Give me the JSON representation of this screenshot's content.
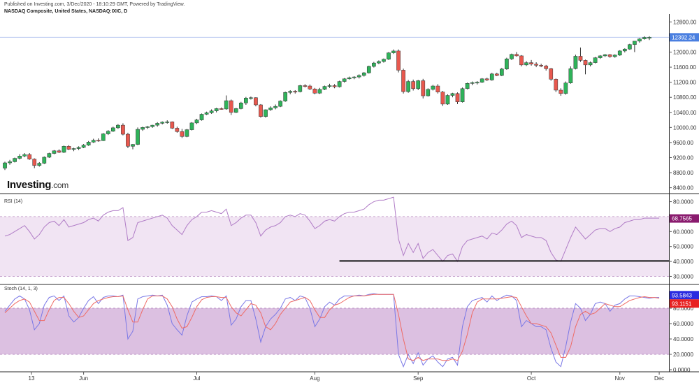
{
  "header": {
    "published": "Published on Investing.com, 3/Dec/2020 - 18:10:29 GMT, Powered by TradingView.",
    "symbol": "NASDAQ Composite, United States, NASDAQ:IXIC, D"
  },
  "logo": {
    "brand": "Investing",
    "suffix": ".com"
  },
  "colors": {
    "up": "#2fb35a",
    "down": "#e8584e",
    "rsi": "#b07cc6",
    "rsi_band": "#f1e4f3",
    "stoch_k": "#7a78e6",
    "stoch_d": "#ef6a64",
    "stoch_band": "#dcc0e1",
    "last_line": "#b8c8f0",
    "last_badge": "#4a7fe0",
    "rsi_badge": "#8a1b6e",
    "k_badge": "#2a2ae0",
    "d_badge": "#e82020"
  },
  "chart_data": [
    {
      "type": "candlestick",
      "title": "NASDAQ Composite, United States, NASDAQ:IXIC, D",
      "ylim": [
        8300,
        12900
      ],
      "y_ticks": [
        "12800.00",
        "12400.00",
        "12000.00",
        "11600.00",
        "11200.00",
        "10800.00",
        "10400.00",
        "10000.00",
        "9600.00",
        "9200.00",
        "8800.00",
        "8400.00"
      ],
      "x_ticks": [
        "13",
        "Jun",
        "Jul",
        "Aug",
        "Sep",
        "Oct",
        "Nov",
        "Dec"
      ],
      "last_value": "12392.24",
      "grid": false,
      "candles": [
        [
          8920,
          9090,
          8870,
          9060
        ],
        [
          9060,
          9140,
          9010,
          9090
        ],
        [
          9090,
          9200,
          9070,
          9180
        ],
        [
          9180,
          9290,
          9150,
          9240
        ],
        [
          9240,
          9320,
          9210,
          9280
        ],
        [
          9280,
          9320,
          9140,
          9160
        ],
        [
          9160,
          9180,
          8920,
          8990
        ],
        [
          8990,
          9080,
          8960,
          9050
        ],
        [
          9050,
          9230,
          9030,
          9210
        ],
        [
          9210,
          9330,
          9190,
          9310
        ],
        [
          9310,
          9400,
          9290,
          9380
        ],
        [
          9380,
          9420,
          9320,
          9340
        ],
        [
          9340,
          9520,
          9320,
          9500
        ],
        [
          9500,
          9530,
          9400,
          9420
        ],
        [
          9420,
          9460,
          9370,
          9440
        ],
        [
          9440,
          9500,
          9400,
          9470
        ],
        [
          9470,
          9560,
          9450,
          9530
        ],
        [
          9530,
          9640,
          9510,
          9610
        ],
        [
          9610,
          9700,
          9590,
          9660
        ],
        [
          9660,
          9710,
          9620,
          9650
        ],
        [
          9650,
          9850,
          9640,
          9830
        ],
        [
          9830,
          9930,
          9800,
          9900
        ],
        [
          9900,
          10020,
          9880,
          9990
        ],
        [
          9990,
          10090,
          9960,
          10060
        ],
        [
          10060,
          10110,
          9790,
          9820
        ],
        [
          9820,
          9860,
          9450,
          9500
        ],
        [
          9500,
          9560,
          9420,
          9550
        ],
        [
          9550,
          10000,
          9530,
          9950
        ],
        [
          9950,
          10020,
          9910,
          10000
        ],
        [
          10000,
          10040,
          9960,
          10020
        ],
        [
          10020,
          10070,
          9990,
          10060
        ],
        [
          10060,
          10140,
          10020,
          10110
        ],
        [
          10110,
          10160,
          10080,
          10140
        ],
        [
          10140,
          10190,
          10100,
          10150
        ],
        [
          10150,
          10160,
          9960,
          9980
        ],
        [
          9980,
          10020,
          9860,
          9890
        ],
        [
          9890,
          9960,
          9720,
          9760
        ],
        [
          9760,
          9960,
          9740,
          9940
        ],
        [
          9940,
          10140,
          9920,
          10120
        ],
        [
          10120,
          10230,
          10090,
          10200
        ],
        [
          10200,
          10370,
          10180,
          10350
        ],
        [
          10350,
          10420,
          10330,
          10390
        ],
        [
          10390,
          10480,
          10360,
          10440
        ],
        [
          10440,
          10520,
          10400,
          10500
        ],
        [
          10500,
          10530,
          10470,
          10490
        ],
        [
          10490,
          10850,
          10470,
          10710
        ],
        [
          10710,
          10740,
          10330,
          10400
        ],
        [
          10400,
          10520,
          10380,
          10500
        ],
        [
          10500,
          10680,
          10480,
          10650
        ],
        [
          10650,
          10810,
          10600,
          10780
        ],
        [
          10780,
          10820,
          10740,
          10790
        ],
        [
          10790,
          10800,
          10560,
          10600
        ],
        [
          10600,
          10620,
          10260,
          10290
        ],
        [
          10290,
          10480,
          10260,
          10470
        ],
        [
          10470,
          10560,
          10440,
          10520
        ],
        [
          10520,
          10610,
          10480,
          10560
        ],
        [
          10560,
          10720,
          10540,
          10700
        ],
        [
          10700,
          10950,
          10680,
          10930
        ],
        [
          10930,
          10990,
          10880,
          10960
        ],
        [
          10960,
          10990,
          10900,
          10950
        ],
        [
          10950,
          11130,
          10930,
          11110
        ],
        [
          11110,
          11150,
          11060,
          11100
        ],
        [
          11100,
          11140,
          10990,
          11020
        ],
        [
          11020,
          11050,
          10880,
          10910
        ],
        [
          10910,
          11050,
          10890,
          11010
        ],
        [
          11010,
          11110,
          10990,
          11090
        ],
        [
          11090,
          11160,
          11050,
          11110
        ],
        [
          11110,
          11150,
          11040,
          11080
        ],
        [
          11080,
          11240,
          11060,
          11220
        ],
        [
          11220,
          11310,
          11190,
          11290
        ],
        [
          11290,
          11350,
          11270,
          11320
        ],
        [
          11320,
          11360,
          11280,
          11340
        ],
        [
          11340,
          11410,
          11300,
          11380
        ],
        [
          11380,
          11470,
          11350,
          11450
        ],
        [
          11450,
          11640,
          11430,
          11620
        ],
        [
          11620,
          11740,
          11590,
          11710
        ],
        [
          11710,
          11780,
          11680,
          11750
        ],
        [
          11750,
          11830,
          11720,
          11810
        ],
        [
          11810,
          12000,
          11790,
          11980
        ],
        [
          11980,
          12070,
          11950,
          12030
        ],
        [
          12030,
          12070,
          11460,
          11520
        ],
        [
          11520,
          11560,
          10900,
          10950
        ],
        [
          10950,
          11260,
          10920,
          11220
        ],
        [
          11220,
          11270,
          10980,
          11030
        ],
        [
          11030,
          11260,
          10990,
          11240
        ],
        [
          11240,
          11290,
          10770,
          10840
        ],
        [
          10840,
          11040,
          10820,
          11010
        ],
        [
          11010,
          11130,
          10980,
          11100
        ],
        [
          11100,
          11150,
          10900,
          10940
        ],
        [
          10940,
          10970,
          10570,
          10620
        ],
        [
          10620,
          10880,
          10600,
          10850
        ],
        [
          10850,
          10920,
          10800,
          10900
        ],
        [
          10900,
          10930,
          10620,
          10680
        ],
        [
          10680,
          11060,
          10660,
          11030
        ],
        [
          11030,
          11190,
          11010,
          11170
        ],
        [
          11170,
          11220,
          11120,
          11190
        ],
        [
          11190,
          11230,
          11140,
          11200
        ],
        [
          11200,
          11310,
          11180,
          11290
        ],
        [
          11290,
          11320,
          11230,
          11260
        ],
        [
          11260,
          11450,
          11240,
          11420
        ],
        [
          11420,
          11450,
          11360,
          11380
        ],
        [
          11380,
          11580,
          11360,
          11550
        ],
        [
          11550,
          11850,
          11530,
          11820
        ],
        [
          11820,
          11960,
          11790,
          11940
        ],
        [
          11940,
          12000,
          11880,
          11900
        ],
        [
          11900,
          11920,
          11620,
          11660
        ],
        [
          11660,
          11760,
          11630,
          11720
        ],
        [
          11720,
          11790,
          11640,
          11680
        ],
        [
          11680,
          11730,
          11600,
          11650
        ],
        [
          11650,
          11690,
          11600,
          11630
        ],
        [
          11630,
          11660,
          11510,
          11560
        ],
        [
          11560,
          11580,
          11240,
          11280
        ],
        [
          11280,
          11300,
          10940,
          10990
        ],
        [
          10990,
          11040,
          10840,
          10900
        ],
        [
          10900,
          11220,
          10870,
          11180
        ],
        [
          11180,
          11620,
          11160,
          11560
        ],
        [
          11560,
          11930,
          11540,
          11890
        ],
        [
          11890,
          12120,
          11740,
          11780
        ],
        [
          11780,
          11800,
          11410,
          11660
        ],
        [
          11660,
          11750,
          11620,
          11720
        ],
        [
          11720,
          11870,
          11700,
          11850
        ],
        [
          11850,
          11920,
          11820,
          11900
        ],
        [
          11900,
          11950,
          11870,
          11930
        ],
        [
          11930,
          11950,
          11850,
          11880
        ],
        [
          11880,
          11940,
          11850,
          11920
        ],
        [
          11920,
          12050,
          11900,
          12030
        ],
        [
          12030,
          12100,
          11990,
          12080
        ],
        [
          12080,
          12220,
          12060,
          12200
        ],
        [
          12200,
          12270,
          12000,
          12290
        ],
        [
          12290,
          12370,
          12250,
          12350
        ],
        [
          12350,
          12420,
          12330,
          12390
        ],
        [
          12390,
          12420,
          12320,
          12392
        ]
      ]
    },
    {
      "type": "line",
      "title": "RSI (14)",
      "ylim": [
        26,
        84
      ],
      "y_ticks": [
        "80.0000",
        "70.0000",
        "60.0000",
        "50.0000",
        "40.0000",
        "30.0000"
      ],
      "band": [
        30,
        70
      ],
      "last_value": "68.7565",
      "support_line": {
        "from_index": 68,
        "to_index": 134,
        "value": 40.3
      },
      "values": [
        57,
        58,
        60,
        62,
        64,
        60,
        55,
        58,
        63,
        66,
        67,
        64,
        68,
        63,
        64,
        65,
        66,
        68,
        69,
        67,
        71,
        73,
        74,
        74,
        76,
        54,
        56,
        66,
        67,
        68,
        69,
        70,
        71,
        69,
        64,
        61,
        58,
        64,
        68,
        70,
        73,
        73,
        74,
        73,
        72,
        75,
        64,
        66,
        69,
        71,
        71,
        66,
        57,
        61,
        63,
        64,
        66,
        70,
        71,
        70,
        72,
        71,
        67,
        62,
        64,
        67,
        68,
        67,
        70,
        72,
        73,
        73,
        74,
        75,
        78,
        80,
        81,
        81,
        82,
        83,
        55,
        44,
        52,
        46,
        52,
        42,
        46,
        48,
        44,
        40,
        44,
        45,
        40,
        50,
        54,
        55,
        56,
        57,
        55,
        59,
        58,
        61,
        65,
        67,
        64,
        56,
        58,
        57,
        56,
        56,
        54,
        46,
        41,
        40,
        48,
        56,
        63,
        59,
        55,
        58,
        61,
        62,
        62,
        60,
        62,
        63,
        66,
        67,
        68,
        68,
        69,
        69,
        69,
        69
      ]
    },
    {
      "type": "line",
      "title": "Stoch (14, 1, 3)",
      "ylim": [
        0,
        100
      ],
      "y_ticks": [
        "80.0000",
        "60.0000",
        "40.0000",
        "20.0000",
        "0.0000"
      ],
      "band": [
        20,
        80
      ],
      "series": [
        {
          "name": "93.5843",
          "values": [
            76,
            84,
            92,
            96,
            92,
            78,
            52,
            60,
            84,
            94,
            96,
            90,
            96,
            70,
            62,
            68,
            80,
            90,
            95,
            86,
            94,
            96,
            96,
            95,
            97,
            40,
            50,
            92,
            95,
            96,
            97,
            96,
            97,
            84,
            60,
            52,
            45,
            70,
            88,
            92,
            95,
            95,
            96,
            95,
            90,
            96,
            58,
            66,
            82,
            90,
            90,
            66,
            36,
            56,
            66,
            72,
            80,
            92,
            94,
            90,
            96,
            94,
            80,
            56,
            66,
            82,
            88,
            84,
            92,
            96,
            96,
            96,
            97,
            96,
            98,
            99,
            98,
            98,
            98,
            98,
            20,
            4,
            20,
            8,
            22,
            6,
            14,
            18,
            10,
            4,
            14,
            16,
            6,
            56,
            82,
            90,
            92,
            94,
            88,
            96,
            90,
            94,
            97,
            96,
            90,
            56,
            64,
            60,
            56,
            56,
            52,
            28,
            10,
            4,
            30,
            62,
            86,
            80,
            64,
            72,
            86,
            88,
            86,
            76,
            84,
            86,
            92,
            96,
            96,
            95,
            94,
            93,
            94,
            94
          ]
        },
        {
          "name": "93.1151",
          "values": [
            74,
            80,
            86,
            90,
            92,
            88,
            76,
            64,
            64,
            78,
            90,
            94,
            94,
            86,
            76,
            68,
            70,
            78,
            86,
            90,
            92,
            94,
            95,
            95,
            96,
            78,
            62,
            62,
            78,
            92,
            96,
            96,
            96,
            92,
            82,
            66,
            54,
            56,
            68,
            82,
            91,
            94,
            95,
            95,
            94,
            94,
            82,
            74,
            70,
            78,
            86,
            84,
            74,
            56,
            52,
            60,
            72,
            80,
            88,
            90,
            92,
            94,
            90,
            78,
            68,
            68,
            78,
            84,
            86,
            90,
            94,
            96,
            96,
            96,
            97,
            98,
            98,
            98,
            98,
            98,
            72,
            40,
            14,
            12,
            16,
            12,
            14,
            14,
            14,
            12,
            12,
            14,
            12,
            24,
            46,
            74,
            88,
            92,
            92,
            92,
            92,
            93,
            94,
            95,
            94,
            82,
            70,
            60,
            60,
            58,
            56,
            48,
            32,
            16,
            16,
            30,
            56,
            72,
            76,
            72,
            74,
            80,
            86,
            84,
            82,
            82,
            86,
            90,
            92,
            94,
            95,
            94,
            94,
            93
          ]
        }
      ]
    }
  ]
}
